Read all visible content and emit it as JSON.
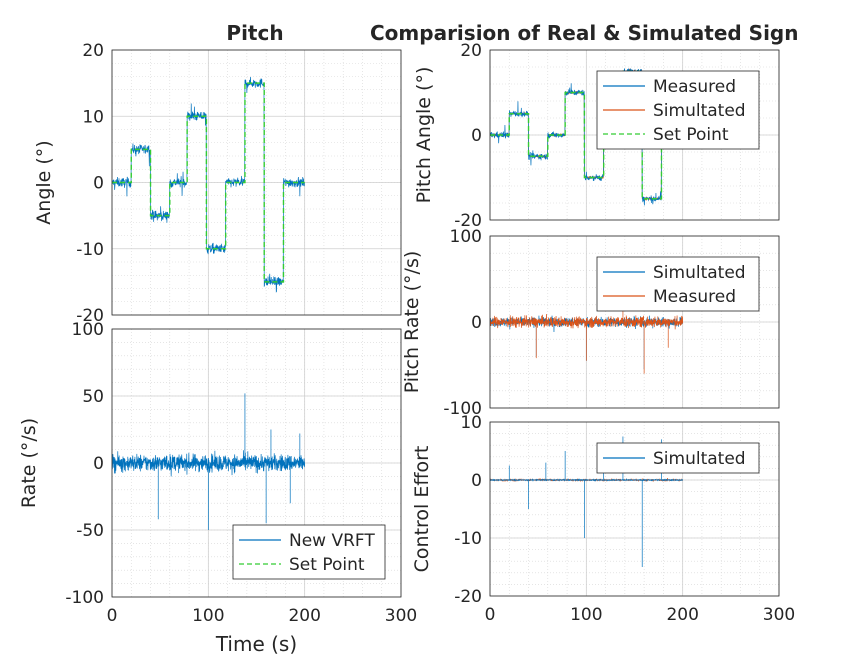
{
  "figure": {
    "left_title": "Pitch",
    "right_title": "Comparision of Real & Simulated Sign"
  },
  "chart_data": [
    {
      "id": "angle",
      "type": "line",
      "title": "Pitch",
      "xlabel": "",
      "ylabel": "Angle (°)",
      "xlim": [
        0,
        300
      ],
      "ylim": [
        -20,
        20
      ],
      "xticks": [
        0,
        100,
        200,
        300
      ],
      "yticks": [
        -20,
        -10,
        0,
        10,
        20
      ],
      "show_xticklabels": false,
      "grid": true,
      "minor_grid": true,
      "legend": null,
      "series": [
        {
          "kind": "noisy",
          "color": "#0072BD",
          "steps": [
            [
              0,
              0
            ],
            [
              20,
              5
            ],
            [
              40,
              -5
            ],
            [
              60,
              0
            ],
            [
              78,
              10
            ],
            [
              98,
              -10
            ],
            [
              118,
              0
            ],
            [
              138,
              15
            ],
            [
              158,
              -15
            ],
            [
              178,
              0
            ],
            [
              200,
              null
            ]
          ],
          "noise": 0.9,
          "spikes": 2.5
        },
        {
          "kind": "step",
          "color": "#33CC33",
          "dashed": true,
          "steps": [
            [
              0,
              0
            ],
            [
              20,
              5
            ],
            [
              40,
              -5
            ],
            [
              60,
              0
            ],
            [
              78,
              10
            ],
            [
              98,
              -10
            ],
            [
              118,
              0
            ],
            [
              138,
              15
            ],
            [
              158,
              -15
            ],
            [
              178,
              0
            ],
            [
              200,
              null
            ]
          ]
        }
      ]
    },
    {
      "id": "rate",
      "type": "line",
      "title": "",
      "xlabel": "Time (s)",
      "ylabel": "Rate (°/s)",
      "xlim": [
        0,
        300
      ],
      "ylim": [
        -100,
        100
      ],
      "xticks": [
        0,
        100,
        200,
        300
      ],
      "yticks": [
        -100,
        -50,
        0,
        50,
        100
      ],
      "show_xticklabels": true,
      "grid": true,
      "minor_grid": true,
      "legend": {
        "position": "bottom-right",
        "entries": [
          {
            "label": "New VRFT",
            "color": "#0072BD",
            "dashed": false
          },
          {
            "label": "Set Point",
            "color": "#33CC33",
            "dashed": true
          }
        ]
      },
      "series": [
        {
          "kind": "band",
          "color": "#0072BD",
          "xmax": 200,
          "amp": 12,
          "spikes": [
            [
              48,
              -42
            ],
            [
              100,
              -50
            ],
            [
              138,
              52
            ],
            [
              160,
              -45
            ],
            [
              165,
              25
            ],
            [
              185,
              -30
            ],
            [
              195,
              22
            ]
          ]
        }
      ]
    },
    {
      "id": "pitch_angle",
      "type": "line",
      "title": "Comparision of Real & Simulated Sign",
      "xlabel": "",
      "ylabel": "Pitch Angle (°)",
      "xlim": [
        0,
        300
      ],
      "ylim": [
        -20,
        20
      ],
      "xticks": [
        0,
        100,
        200,
        300
      ],
      "yticks": [
        -20,
        0,
        20
      ],
      "show_xticklabels": false,
      "grid": true,
      "minor_grid": true,
      "legend": {
        "position": "top-right",
        "entries": [
          {
            "label": "Measured",
            "color": "#0072BD",
            "dashed": false
          },
          {
            "label": "Simultated",
            "color": "#D95319",
            "dashed": false
          },
          {
            "label": "Set Point",
            "color": "#33CC33",
            "dashed": true
          }
        ]
      },
      "series": [
        {
          "kind": "noisy",
          "color": "#D95319",
          "steps": [
            [
              0,
              0
            ],
            [
              20,
              5
            ],
            [
              40,
              -5
            ],
            [
              60,
              0
            ],
            [
              78,
              10
            ],
            [
              98,
              -10
            ],
            [
              118,
              0
            ],
            [
              138,
              15
            ],
            [
              158,
              -15
            ],
            [
              178,
              0
            ],
            [
              200,
              null
            ]
          ],
          "noise": 0.3,
          "spikes": 0.5
        },
        {
          "kind": "noisy",
          "color": "#0072BD",
          "steps": [
            [
              0,
              0
            ],
            [
              20,
              5
            ],
            [
              40,
              -5
            ],
            [
              60,
              0
            ],
            [
              78,
              10
            ],
            [
              98,
              -10
            ],
            [
              118,
              0
            ],
            [
              138,
              15
            ],
            [
              158,
              -15
            ],
            [
              178,
              0
            ],
            [
              200,
              null
            ]
          ],
          "noise": 0.9,
          "spikes": 2.5
        },
        {
          "kind": "step",
          "color": "#33CC33",
          "dashed": true,
          "steps": [
            [
              0,
              0
            ],
            [
              20,
              5
            ],
            [
              40,
              -5
            ],
            [
              60,
              0
            ],
            [
              78,
              10
            ],
            [
              98,
              -10
            ],
            [
              118,
              0
            ],
            [
              138,
              15
            ],
            [
              158,
              -15
            ],
            [
              178,
              0
            ],
            [
              200,
              null
            ]
          ]
        }
      ]
    },
    {
      "id": "pitch_rate",
      "type": "line",
      "title": "",
      "xlabel": "",
      "ylabel": "Pitch Rate (°/s)",
      "xlim": [
        0,
        300
      ],
      "ylim": [
        -100,
        100
      ],
      "xticks": [
        0,
        100,
        200,
        300
      ],
      "yticks": [
        -100,
        0,
        100
      ],
      "show_xticklabels": false,
      "grid": true,
      "minor_grid": true,
      "legend": {
        "position": "top-right",
        "entries": [
          {
            "label": "Simultated",
            "color": "#0072BD",
            "dashed": false
          },
          {
            "label": "Measured",
            "color": "#D95319",
            "dashed": false
          }
        ]
      },
      "series": [
        {
          "kind": "band",
          "color": "#0072BD",
          "xmax": 200,
          "amp": 10,
          "spikes": [
            [
              48,
              -40
            ],
            [
              100,
              -45
            ],
            [
              160,
              -55
            ]
          ]
        },
        {
          "kind": "band",
          "color": "#D95319",
          "xmax": 200,
          "amp": 12,
          "spikes": [
            [
              48,
              -42
            ],
            [
              100,
              -45
            ],
            [
              138,
              25
            ],
            [
              160,
              -60
            ],
            [
              185,
              -30
            ]
          ]
        }
      ]
    },
    {
      "id": "control_effort",
      "type": "line",
      "title": "",
      "xlabel": "",
      "ylabel": "Control Effort",
      "xlim": [
        0,
        300
      ],
      "ylim": [
        -20,
        10
      ],
      "xticks": [
        0,
        100,
        200,
        300
      ],
      "yticks": [
        -20,
        -10,
        0,
        10
      ],
      "show_xticklabels": true,
      "grid": true,
      "minor_grid": true,
      "legend": {
        "position": "top-right",
        "entries": [
          {
            "label": "Simultated",
            "color": "#0072BD",
            "dashed": false
          }
        ]
      },
      "series": [
        {
          "kind": "band",
          "color": "#D95319",
          "xmax": 200,
          "amp": 0.25,
          "spikes": []
        },
        {
          "kind": "band",
          "color": "#0072BD",
          "xmax": 200,
          "amp": 0.15,
          "spikes": [
            [
              20,
              2.5
            ],
            [
              40,
              -5
            ],
            [
              58,
              3
            ],
            [
              78,
              5
            ],
            [
              98,
              -10
            ],
            [
              118,
              3.5
            ],
            [
              138,
              7.5
            ],
            [
              158,
              -15
            ],
            [
              178,
              7
            ]
          ]
        }
      ]
    }
  ]
}
